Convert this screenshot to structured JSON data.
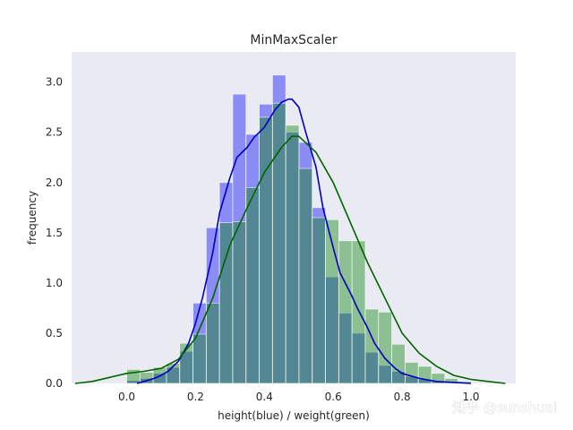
{
  "chart_data": {
    "type": "bar",
    "title": "MinMaxScaler",
    "xlabel": "height(blue) / weight(green)",
    "ylabel": "frequency",
    "xlim": [
      -0.16,
      1.13
    ],
    "ylim": [
      0,
      3.3
    ],
    "xticks": [
      "0.0",
      "0.2",
      "0.4",
      "0.6",
      "0.8",
      "1.0"
    ],
    "xtick_values": [
      0.0,
      0.2,
      0.4,
      0.6,
      0.8,
      1.0
    ],
    "yticks": [
      "0.0",
      "0.5",
      "1.0",
      "1.5",
      "2.0",
      "2.5",
      "3.0"
    ],
    "ytick_values": [
      0.0,
      0.5,
      1.0,
      1.5,
      2.0,
      2.5,
      3.0
    ],
    "grid": false,
    "background_color": "#eaeaf2",
    "series": [
      {
        "name": "height",
        "kind": "histogram",
        "color": "#0000ff",
        "alpha": 0.4,
        "bin_edges": [
          0.0,
          0.0385,
          0.077,
          0.1155,
          0.154,
          0.1925,
          0.231,
          0.2695,
          0.308,
          0.3465,
          0.385,
          0.4235,
          0.462,
          0.5005,
          0.539,
          0.5775,
          0.616,
          0.6545,
          0.693,
          0.7315,
          0.77,
          0.8085,
          0.847,
          0.8855,
          0.924,
          0.9625,
          1.0
        ],
        "values": [
          0.03,
          0.05,
          0.1,
          0.16,
          0.32,
          0.8,
          1.55,
          2.0,
          2.88,
          2.48,
          2.78,
          3.07,
          2.5,
          2.4,
          1.75,
          1.06,
          0.7,
          0.5,
          0.31,
          0.18,
          0.12,
          0.07,
          0.04,
          0.02,
          0.01,
          0.01
        ]
      },
      {
        "name": "weight",
        "kind": "histogram",
        "color": "#008000",
        "alpha": 0.4,
        "bin_edges": [
          0.0,
          0.0385,
          0.077,
          0.1155,
          0.154,
          0.1925,
          0.231,
          0.2695,
          0.308,
          0.3465,
          0.385,
          0.4235,
          0.462,
          0.5005,
          0.539,
          0.5775,
          0.616,
          0.6545,
          0.693,
          0.7315,
          0.77,
          0.8085,
          0.847,
          0.8855,
          0.924,
          0.9625,
          1.0
        ],
        "values": [
          0.14,
          0.11,
          0.16,
          0.2,
          0.4,
          0.49,
          0.8,
          1.6,
          1.61,
          1.95,
          2.65,
          2.79,
          2.57,
          2.14,
          1.65,
          1.63,
          1.42,
          1.42,
          0.74,
          0.71,
          0.39,
          0.21,
          0.17,
          0.1,
          0.05,
          0.02
        ]
      },
      {
        "name": "height-kde",
        "kind": "kde",
        "color": "#0000c0",
        "x": [
          0.03,
          0.05,
          0.08,
          0.1,
          0.12,
          0.15,
          0.18,
          0.2,
          0.22,
          0.25,
          0.27,
          0.3,
          0.32,
          0.35,
          0.37,
          0.4,
          0.43,
          0.45,
          0.47,
          0.48,
          0.5,
          0.52,
          0.55,
          0.57,
          0.6,
          0.62,
          0.65,
          0.67,
          0.7,
          0.72,
          0.75,
          0.78,
          0.8,
          0.85,
          0.9,
          0.95,
          1.0
        ],
        "y": [
          0.0,
          0.02,
          0.05,
          0.08,
          0.12,
          0.22,
          0.4,
          0.6,
          0.85,
          1.3,
          1.7,
          2.05,
          2.25,
          2.35,
          2.45,
          2.55,
          2.72,
          2.8,
          2.83,
          2.83,
          2.75,
          2.5,
          2.15,
          1.75,
          1.35,
          1.1,
          0.9,
          0.75,
          0.55,
          0.4,
          0.25,
          0.15,
          0.1,
          0.05,
          0.02,
          0.01,
          0.0
        ]
      },
      {
        "name": "weight-kde",
        "kind": "kde",
        "color": "#006400",
        "x": [
          -0.15,
          -0.1,
          -0.05,
          0.0,
          0.05,
          0.1,
          0.15,
          0.2,
          0.25,
          0.3,
          0.35,
          0.4,
          0.45,
          0.48,
          0.5,
          0.55,
          0.6,
          0.65,
          0.7,
          0.75,
          0.8,
          0.85,
          0.9,
          0.95,
          1.0,
          1.05,
          1.1
        ],
        "y": [
          0.0,
          0.02,
          0.06,
          0.1,
          0.12,
          0.15,
          0.24,
          0.45,
          0.85,
          1.38,
          1.75,
          2.1,
          2.35,
          2.46,
          2.46,
          2.3,
          2.0,
          1.6,
          1.2,
          0.85,
          0.5,
          0.3,
          0.17,
          0.08,
          0.04,
          0.02,
          0.0
        ]
      }
    ]
  },
  "watermark": {
    "text": "知乎 @sunshuai"
  }
}
